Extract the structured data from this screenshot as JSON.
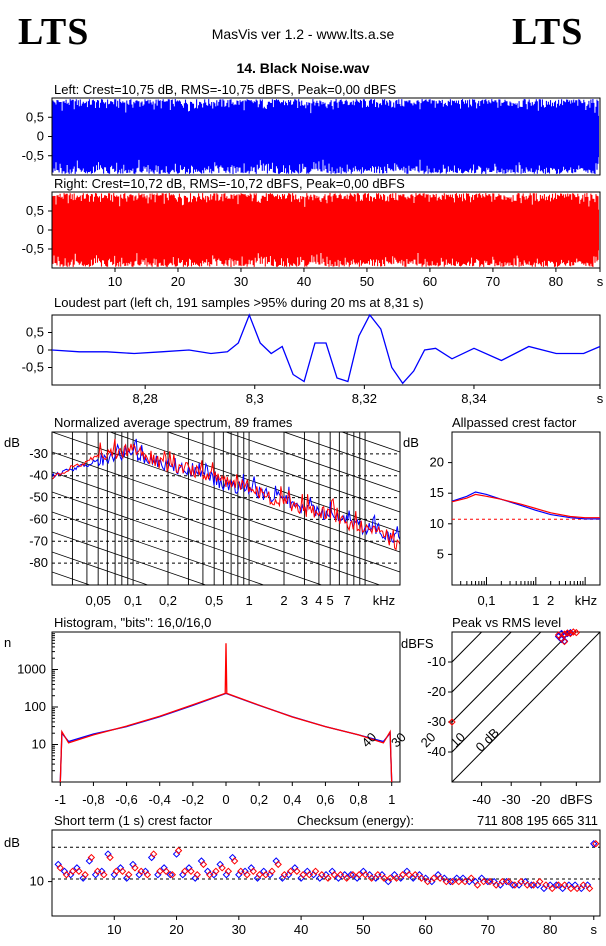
{
  "header": {
    "logo_left": "LTS",
    "logo_right": "LTS",
    "app_title": "MasVis ver 1.2 - www.lts.a.se",
    "file_title": "14. Black Noise.wav"
  },
  "colors": {
    "left": "#0000ff",
    "right": "#ff0000"
  },
  "chart_data": [
    {
      "id": "wave_left",
      "type": "area",
      "title": "Left: Crest=10,75 dB, RMS=-10,75 dBFS, Peak=0,00 dBFS",
      "ylim": [
        -1,
        1
      ],
      "xlim": [
        0,
        87
      ],
      "yticks": [
        "0,5",
        "0",
        "-0,5"
      ],
      "ytick_values": [
        0.5,
        0,
        -0.5
      ],
      "series": [
        {
          "x": [
            0,
            87
          ],
          "envelope_max": [
            1,
            1
          ],
          "envelope_min": [
            -1,
            -1
          ]
        }
      ]
    },
    {
      "id": "wave_right",
      "type": "area",
      "title": "Right: Crest=10,72 dB, RMS=-10,72 dBFS, Peak=0,00 dBFS",
      "ylim": [
        -1,
        1
      ],
      "xlim": [
        0,
        87
      ],
      "yticks": [
        "0,5",
        "0",
        "-0,5"
      ],
      "ytick_values": [
        0.5,
        0,
        -0.5
      ],
      "xticks": [
        "10",
        "20",
        "30",
        "40",
        "50",
        "60",
        "70",
        "80",
        "s"
      ],
      "xtick_values": [
        10,
        20,
        30,
        40,
        50,
        60,
        70,
        80,
        87
      ],
      "series": [
        {
          "x": [
            0,
            87
          ],
          "envelope_max": [
            1,
            1
          ],
          "envelope_min": [
            -1,
            -1
          ]
        }
      ]
    },
    {
      "id": "loudest",
      "type": "line",
      "title": "Loudest part (left  ch, 191 samples >95% during 20 ms at 8,31 s)",
      "xlim": [
        8.263,
        8.363
      ],
      "ylim": [
        -1,
        1
      ],
      "yticks": [
        "0,5",
        "0",
        "-0,5"
      ],
      "ytick_values": [
        0.5,
        0,
        -0.5
      ],
      "xticks": [
        "8,28",
        "8,3",
        "8,32",
        "8,34",
        "s"
      ],
      "xtick_values": [
        8.28,
        8.3,
        8.32,
        8.34,
        8.363
      ],
      "series": [
        {
          "name": "left",
          "x": [
            8.263,
            8.268,
            8.273,
            8.278,
            8.283,
            8.288,
            8.292,
            8.295,
            8.297,
            8.299,
            8.301,
            8.303,
            8.305,
            8.307,
            8.309,
            8.311,
            8.313,
            8.315,
            8.317,
            8.319,
            8.321,
            8.323,
            8.325,
            8.327,
            8.329,
            8.331,
            8.333,
            8.336,
            8.34,
            8.345,
            8.35,
            8.355,
            8.36,
            8.363
          ],
          "y": [
            0,
            -0.05,
            -0.05,
            -0.1,
            -0.05,
            0,
            -0.1,
            -0.05,
            0.2,
            1,
            0.2,
            -0.1,
            0.1,
            -0.7,
            -0.9,
            0.2,
            0.2,
            -0.8,
            -0.9,
            0.4,
            1,
            0.6,
            -0.5,
            -0.95,
            -0.6,
            0,
            0.05,
            -0.25,
            0.05,
            -0.3,
            0.1,
            -0.1,
            -0.1,
            0.1
          ]
        }
      ]
    },
    {
      "id": "spectrum",
      "type": "line",
      "title": "Normalized average spectrum, 89 frames",
      "ylabel": "dB",
      "xlabel": "kHz",
      "xscale": "log",
      "xlim": [
        0.02,
        20
      ],
      "ylim": [
        -90,
        -20
      ],
      "yticks": [
        "-30",
        "-40",
        "-50",
        "-60",
        "-70",
        "-80"
      ],
      "ytick_values": [
        -30,
        -40,
        -50,
        -60,
        -70,
        -80
      ],
      "xticks": [
        "0,05",
        "0,1",
        "0,2",
        "0,5",
        "1",
        "2",
        "3",
        "4",
        "5",
        "7",
        "kHz"
      ],
      "xtick_values": [
        0.05,
        0.1,
        0.2,
        0.5,
        1,
        2,
        3,
        4,
        5,
        7,
        20
      ],
      "series": [
        {
          "name": "left",
          "x": [
            0.02,
            0.03,
            0.04,
            0.05,
            0.06,
            0.08,
            0.1,
            0.15,
            0.2,
            0.3,
            0.5,
            0.7,
            1,
            1.5,
            2,
            3,
            5,
            7,
            10,
            15,
            20
          ],
          "y": [
            -40,
            -37,
            -35,
            -33,
            -32,
            -31,
            -30,
            -34,
            -35,
            -38,
            -42,
            -45,
            -46,
            -49,
            -51,
            -55,
            -58,
            -61,
            -64,
            -67,
            -70
          ]
        },
        {
          "name": "right",
          "x": [
            0.02,
            0.03,
            0.04,
            0.05,
            0.06,
            0.08,
            0.1,
            0.15,
            0.2,
            0.3,
            0.5,
            0.7,
            1,
            1.5,
            2,
            3,
            5,
            7,
            10,
            15,
            20
          ],
          "y": [
            -41,
            -36,
            -34,
            -30,
            -31,
            -29,
            -28,
            -33,
            -36,
            -37,
            -41,
            -44,
            -45,
            -50,
            -52,
            -56,
            -57,
            -62,
            -63,
            -68,
            -72
          ]
        }
      ]
    },
    {
      "id": "allpassed",
      "type": "line",
      "title": "Allpassed crest factor",
      "ylabel": "dB",
      "xlabel": "kHz",
      "xscale": "log",
      "xlim": [
        0.02,
        20
      ],
      "ylim": [
        0,
        25
      ],
      "yticks": [
        "20",
        "15",
        "10",
        "5"
      ],
      "ytick_values": [
        20,
        15,
        10,
        5
      ],
      "xticks": [
        "0,1",
        "1",
        "2",
        "kHz"
      ],
      "xtick_values": [
        0.1,
        1,
        2,
        20
      ],
      "reference_db": 10.75,
      "series": [
        {
          "name": "left",
          "x": [
            0.02,
            0.04,
            0.06,
            0.1,
            0.2,
            0.5,
            1,
            2,
            5,
            10,
            20
          ],
          "y": [
            13.7,
            14.5,
            15.2,
            14.8,
            14,
            13,
            12.2,
            11.5,
            11,
            10.8,
            10.8
          ]
        },
        {
          "name": "right",
          "x": [
            0.02,
            0.04,
            0.06,
            0.1,
            0.2,
            0.5,
            1,
            2,
            5,
            10,
            20
          ],
          "y": [
            13.6,
            14.2,
            14.8,
            14.5,
            14,
            13.2,
            12.5,
            11.8,
            11.2,
            11,
            11
          ]
        }
      ]
    },
    {
      "id": "histogram",
      "type": "line",
      "title": "Histogram, \"bits\": 16,0/16,0",
      "ylabel": "n",
      "yscale": "log",
      "xlim": [
        -1.05,
        1.05
      ],
      "ylim": [
        1,
        10000
      ],
      "yticks": [
        "1000",
        "100",
        "10"
      ],
      "ytick_values": [
        1000,
        100,
        10
      ],
      "xticks": [
        "-1",
        "-0,8",
        "-0,6",
        "-0,4",
        "-0,2",
        "0",
        "0,2",
        "0,4",
        "0,6",
        "0,8",
        "1"
      ],
      "xtick_values": [
        -1,
        -0.8,
        -0.6,
        -0.4,
        -0.2,
        0,
        0.2,
        0.4,
        0.6,
        0.8,
        1
      ],
      "series": [
        {
          "name": "left",
          "x": [
            -1,
            -0.99,
            -0.95,
            -0.8,
            -0.6,
            -0.4,
            -0.2,
            0,
            0.2,
            0.4,
            0.6,
            0.8,
            0.95,
            0.99,
            1
          ],
          "y": [
            1,
            20,
            12,
            19,
            30,
            55,
            110,
            230,
            110,
            55,
            30,
            18,
            12,
            20,
            1
          ]
        },
        {
          "name": "right",
          "x": [
            -1,
            -0.99,
            -0.95,
            -0.8,
            -0.6,
            -0.4,
            -0.2,
            -0.005,
            0,
            0.005,
            0.2,
            0.4,
            0.6,
            0.8,
            0.95,
            0.99,
            1
          ],
          "y": [
            1,
            22,
            11,
            18,
            31,
            57,
            115,
            230,
            5000,
            230,
            112,
            54,
            30,
            18,
            11,
            22,
            1
          ]
        }
      ]
    },
    {
      "id": "peak_rms",
      "type": "scatter",
      "title": "Peak vs RMS level",
      "xlabel": "dBFS",
      "ylabel": "dBFS",
      "xlim": [
        -50,
        0
      ],
      "ylim": [
        -50,
        0
      ],
      "xticks": [
        "-40",
        "-30",
        "-20",
        "dBFS"
      ],
      "xtick_values": [
        -40,
        -30,
        -20,
        -8
      ],
      "yticks": [
        "-10",
        "-20",
        "-30",
        "-40"
      ],
      "ytick_values": [
        -10,
        -20,
        -30,
        -40
      ],
      "diagonals": [
        "40",
        "30",
        "20",
        "10",
        "0 dB"
      ],
      "diagonal_values": [
        40,
        30,
        20,
        10,
        0
      ],
      "series": [
        {
          "name": "left",
          "x": [
            -14,
            -13,
            -12,
            -11,
            -10,
            -13,
            -12
          ],
          "y": [
            -1.5,
            -0.5,
            -1,
            -0.5,
            -0.2,
            -2.5,
            -3
          ]
        },
        {
          "name": "right",
          "x": [
            -14,
            -12,
            -11,
            -10,
            -9,
            -8,
            -13,
            -12,
            -50
          ],
          "y": [
            -1,
            -0.7,
            -0.3,
            -0.5,
            0,
            -0.2,
            -2.2,
            -3.2,
            -30
          ]
        }
      ]
    },
    {
      "id": "short_crest",
      "type": "scatter",
      "title": "Short term (1 s) crest factor",
      "ylabel": "dB",
      "checksum_label": "Checksum (energy):",
      "checksum_value": "711 808 195 665 311",
      "xlim": [
        0,
        88
      ],
      "ylim": [
        0,
        25
      ],
      "yticks": [
        "10"
      ],
      "ytick_values": [
        10
      ],
      "reference_lines": [
        10.75,
        20
      ],
      "xticks": [
        "10",
        "20",
        "30",
        "40",
        "50",
        "60",
        "70",
        "80",
        "s"
      ],
      "xtick_values": [
        10,
        20,
        30,
        40,
        50,
        60,
        70,
        80,
        87
      ],
      "series": [
        {
          "name": "left",
          "x": [
            1,
            2,
            3,
            4,
            5,
            6,
            7,
            8,
            9,
            10,
            11,
            12,
            13,
            14,
            15,
            16,
            17,
            18,
            19,
            20,
            21,
            22,
            23,
            24,
            25,
            26,
            27,
            28,
            29,
            30,
            31,
            32,
            33,
            34,
            35,
            36,
            37,
            38,
            39,
            40,
            41,
            42,
            43,
            44,
            45,
            46,
            47,
            48,
            49,
            50,
            51,
            52,
            53,
            54,
            55,
            56,
            57,
            58,
            59,
            60,
            61,
            62,
            63,
            64,
            65,
            66,
            67,
            68,
            69,
            70,
            71,
            72,
            73,
            74,
            75,
            76,
            77,
            78,
            79,
            80,
            81,
            82,
            83,
            84,
            85,
            86,
            87
          ],
          "y": [
            15,
            13,
            12,
            14,
            11,
            16,
            12,
            13,
            18,
            12,
            14,
            11,
            15,
            12,
            13,
            17,
            12,
            14,
            12,
            18,
            12,
            14,
            11,
            16,
            13,
            12,
            15,
            12,
            17,
            12,
            13,
            14,
            11,
            13,
            12,
            16,
            11,
            12,
            14,
            11,
            13,
            12,
            11,
            12,
            13,
            11,
            12,
            12,
            11,
            13,
            12,
            11,
            12,
            10,
            12,
            11,
            13,
            11,
            12,
            11,
            10,
            12,
            11,
            10,
            11,
            11,
            10,
            10,
            11,
            10,
            10,
            9,
            10,
            9,
            9,
            10,
            9,
            9,
            8,
            9,
            9,
            8,
            9,
            9,
            8,
            9,
            21
          ]
        },
        {
          "name": "right",
          "x": [
            1,
            2,
            3,
            4,
            5,
            6,
            7,
            8,
            9,
            10,
            11,
            12,
            13,
            14,
            15,
            16,
            17,
            18,
            19,
            20,
            21,
            22,
            23,
            24,
            25,
            26,
            27,
            28,
            29,
            30,
            31,
            32,
            33,
            34,
            35,
            36,
            37,
            38,
            39,
            40,
            41,
            42,
            43,
            44,
            45,
            46,
            47,
            48,
            49,
            50,
            51,
            52,
            53,
            54,
            55,
            56,
            57,
            58,
            59,
            60,
            61,
            62,
            63,
            64,
            65,
            66,
            67,
            68,
            69,
            70,
            71,
            72,
            73,
            74,
            75,
            76,
            77,
            78,
            79,
            80,
            81,
            82,
            83,
            84,
            85,
            86,
            87
          ],
          "y": [
            14,
            12,
            13,
            13,
            12,
            17,
            13,
            12,
            17,
            13,
            13,
            12,
            14,
            13,
            12,
            18,
            13,
            13,
            12,
            19,
            13,
            13,
            12,
            15,
            12,
            13,
            14,
            13,
            16,
            13,
            12,
            13,
            12,
            12,
            13,
            15,
            12,
            13,
            13,
            12,
            12,
            13,
            12,
            11,
            12,
            12,
            11,
            12,
            12,
            12,
            11,
            12,
            11,
            11,
            11,
            12,
            12,
            12,
            11,
            10,
            11,
            11,
            10,
            10,
            10,
            10,
            11,
            9,
            10,
            10,
            9,
            10,
            10,
            9,
            10,
            9,
            9,
            10,
            9,
            8,
            9,
            9,
            8,
            8,
            9,
            8,
            21
          ]
        }
      ]
    }
  ]
}
